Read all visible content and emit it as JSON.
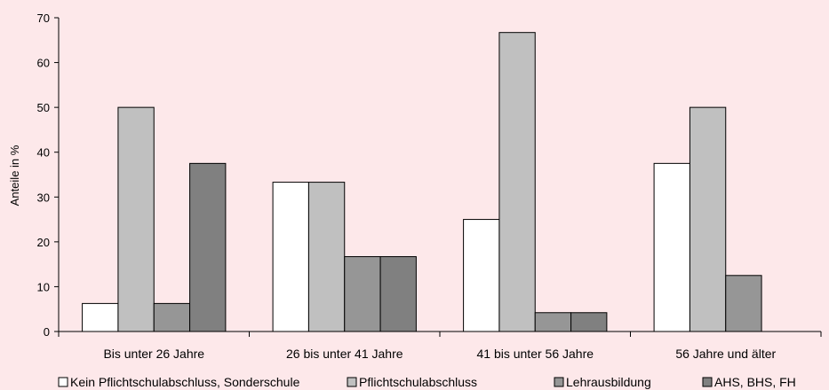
{
  "chart_data": {
    "type": "bar",
    "title": "",
    "xlabel": "",
    "ylabel": "Anteile in %",
    "ylim": [
      0,
      70
    ],
    "yticks": [
      0,
      10,
      20,
      30,
      40,
      50,
      60,
      70
    ],
    "grid": false,
    "legend_position": "bottom",
    "categories": [
      "Bis unter 26 Jahre",
      "26 bis unter 41 Jahre",
      "41 bis unter 56 Jahre",
      "56 Jahre und älter"
    ],
    "series": [
      {
        "name": "Kein Pflichtschulabschluss, Sonderschule",
        "color": "#ffffff",
        "values": [
          6.25,
          33.3,
          25.0,
          37.5
        ]
      },
      {
        "name": "Pflichtschulabschluss",
        "color": "#c0c0c0",
        "values": [
          50.0,
          33.3,
          66.7,
          50.0
        ]
      },
      {
        "name": "Lehrausbildung",
        "color": "#969696",
        "values": [
          6.25,
          16.7,
          4.2,
          12.5
        ]
      },
      {
        "name": "AHS, BHS, FH",
        "color": "#808080",
        "values": [
          37.5,
          16.7,
          4.2,
          0
        ]
      }
    ]
  }
}
